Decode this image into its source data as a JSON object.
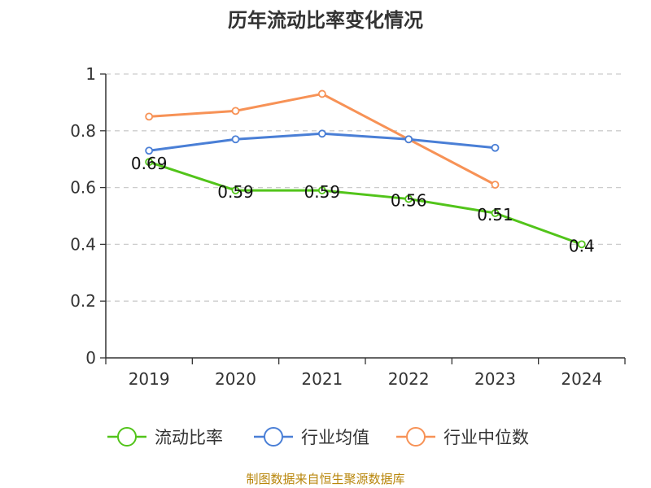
{
  "chart_data": {
    "type": "line",
    "title": "历年流动比率变化情况",
    "categories": [
      "2019",
      "2020",
      "2021",
      "2022",
      "2023",
      "2024"
    ],
    "ylim": [
      0,
      1
    ],
    "yticks": [
      0,
      0.2,
      0.4,
      0.6,
      0.8,
      1
    ],
    "ytick_labels": [
      "0",
      "0.2",
      "0.4",
      "0.6",
      "0.8",
      "1"
    ],
    "grid": true,
    "legend_position": "bottom",
    "series": [
      {
        "name": "流动比率",
        "color": "#52c41a",
        "values": [
          0.69,
          0.59,
          0.59,
          0.56,
          0.51,
          0.4
        ],
        "labels": [
          "0.69",
          "0.59",
          "0.59",
          "0.56",
          "0.51",
          "0.4"
        ],
        "show_labels": true
      },
      {
        "name": "行业均值",
        "color": "#4a7fd6",
        "values": [
          0.73,
          0.77,
          0.79,
          0.77,
          0.74,
          null
        ],
        "show_labels": false
      },
      {
        "name": "行业中位数",
        "color": "#f79256",
        "values": [
          0.85,
          0.87,
          0.93,
          0.77,
          0.61,
          null
        ],
        "show_labels": false
      }
    ],
    "source": "制图数据来自恒生聚源数据库"
  }
}
